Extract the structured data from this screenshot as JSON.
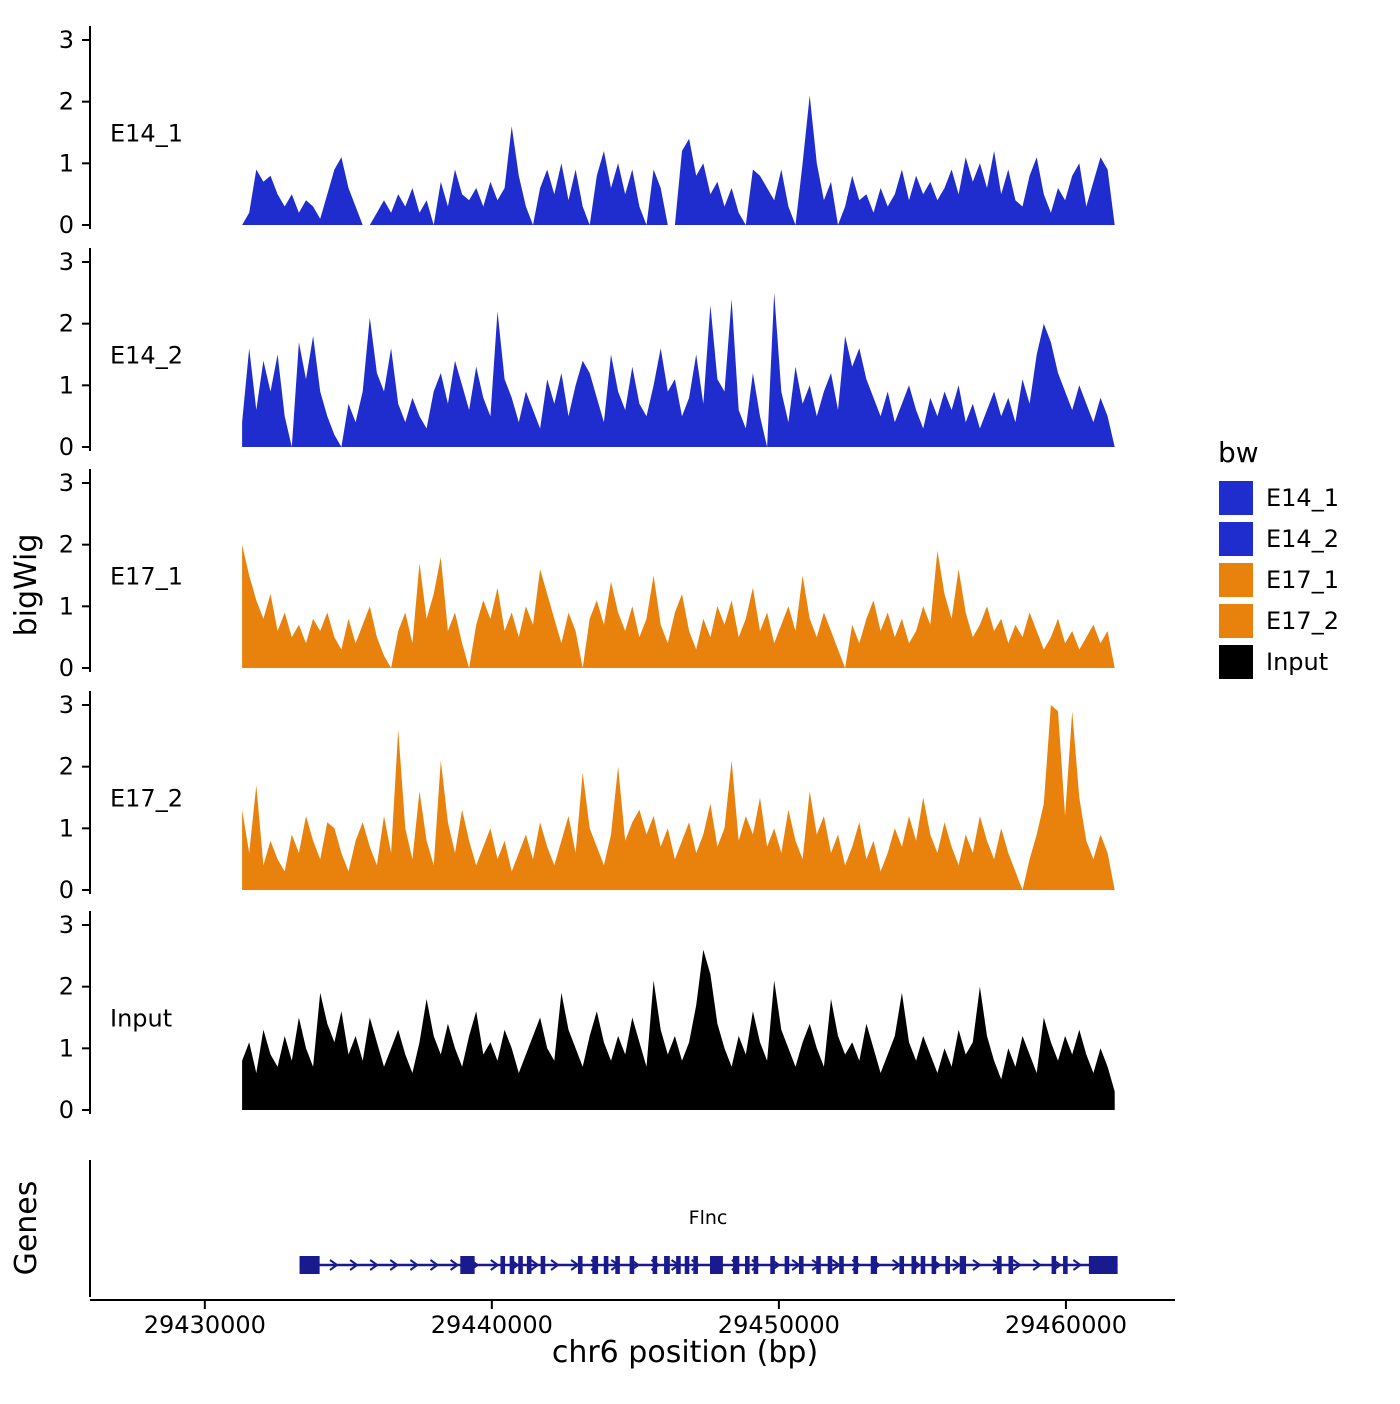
{
  "axes": {
    "y_title": "bigWig",
    "x_title": "chr6 position (bp)",
    "genes_title": "Genes",
    "y_tick_values": [
      0,
      1,
      2,
      3
    ],
    "x_ticks": [
      {
        "bp": 29430000,
        "label": "29430000"
      },
      {
        "bp": 29440000,
        "label": "29440000"
      },
      {
        "bp": 29450000,
        "label": "29450000"
      },
      {
        "bp": 29460000,
        "label": "29460000"
      }
    ]
  },
  "legend": {
    "title": "bw",
    "entries": [
      {
        "label": "E14_1",
        "color": "#1F2DCE"
      },
      {
        "label": "E14_2",
        "color": "#1F2DCE"
      },
      {
        "label": "E17_1",
        "color": "#E8820D"
      },
      {
        "label": "E17_2",
        "color": "#E8820D"
      },
      {
        "label": "Input",
        "color": "#000000"
      }
    ]
  },
  "chart_data": {
    "type": "area",
    "title": "",
    "xlabel": "chr6 position (bp)",
    "ylabel": "bigWig",
    "x_domain": [
      29426000,
      29463800
    ],
    "signal_x_start": 29431300,
    "signal_x_end": 29461700,
    "ylim": [
      0,
      3
    ],
    "tracks": [
      {
        "name": "E14_1",
        "color": "#1F2DCE",
        "values": [
          0,
          0.2,
          0.9,
          0.7,
          0.8,
          0.5,
          0.3,
          0.5,
          0.2,
          0.4,
          0.3,
          0.1,
          0.5,
          0.9,
          1.1,
          0.6,
          0.3,
          0,
          0,
          0.2,
          0.4,
          0.2,
          0.5,
          0.3,
          0.6,
          0.2,
          0.4,
          0,
          0.7,
          0.3,
          0.9,
          0.5,
          0.4,
          0.6,
          0.3,
          0.7,
          0.4,
          0.6,
          1.6,
          0.8,
          0.3,
          0,
          0.6,
          0.9,
          0.5,
          1.0,
          0.4,
          0.9,
          0.3,
          0,
          0.8,
          1.2,
          0.6,
          1.0,
          0.5,
          0.9,
          0.3,
          0,
          0.9,
          0.6,
          0,
          0,
          1.2,
          1.4,
          0.8,
          1.0,
          0.5,
          0.7,
          0.3,
          0.6,
          0.2,
          0,
          0.9,
          0.8,
          0.6,
          0.4,
          0.9,
          0.3,
          0,
          1.0,
          2.1,
          1.0,
          0.4,
          0.7,
          0,
          0.3,
          0.8,
          0.4,
          0.5,
          0.2,
          0.6,
          0.3,
          0.5,
          0.9,
          0.4,
          0.8,
          0.5,
          0.7,
          0.4,
          0.6,
          0.9,
          0.5,
          1.1,
          0.7,
          1.0,
          0.6,
          1.2,
          0.5,
          0.9,
          0.4,
          0.3,
          0.8,
          1.1,
          0.5,
          0.2,
          0.6,
          0.4,
          0.8,
          1.0,
          0.3,
          0.7,
          1.1,
          0.9,
          0
        ]
      },
      {
        "name": "E14_2",
        "color": "#1F2DCE",
        "values": [
          0.4,
          1.6,
          0.6,
          1.4,
          0.9,
          1.5,
          0.5,
          0,
          1.7,
          1.1,
          1.8,
          0.9,
          0.5,
          0.2,
          0,
          0.7,
          0.4,
          0.9,
          2.1,
          1.2,
          0.9,
          1.6,
          0.7,
          0.4,
          0.8,
          0.5,
          0.3,
          0.9,
          1.2,
          0.7,
          1.4,
          1.0,
          0.6,
          1.3,
          0.8,
          0.5,
          2.2,
          1.1,
          0.8,
          0.4,
          0.9,
          0.6,
          0.3,
          1.1,
          0.7,
          1.2,
          0.5,
          1.0,
          1.4,
          1.2,
          0.8,
          0.4,
          1.5,
          0.9,
          0.6,
          1.3,
          0.7,
          0.5,
          1.0,
          1.6,
          0.9,
          1.1,
          0.5,
          0.8,
          1.5,
          0.7,
          2.3,
          1.1,
          0.9,
          2.4,
          0.6,
          0.3,
          1.2,
          0.5,
          0,
          2.5,
          0.9,
          0.4,
          1.3,
          0.7,
          1.0,
          0.5,
          0.9,
          1.2,
          0.6,
          1.8,
          1.3,
          1.6,
          1.1,
          0.8,
          0.5,
          0.9,
          0.4,
          0.7,
          1.0,
          0.6,
          0.3,
          0.8,
          0.5,
          0.9,
          0.6,
          1.0,
          0.4,
          0.7,
          0.3,
          0.6,
          0.9,
          0.5,
          0.8,
          0.4,
          1.1,
          0.7,
          1.5,
          2.0,
          1.7,
          1.2,
          0.9,
          0.6,
          1.0,
          0.7,
          0.4,
          0.8,
          0.5,
          0
        ]
      },
      {
        "name": "E17_1",
        "color": "#E8820D",
        "values": [
          2.0,
          1.5,
          1.1,
          0.8,
          1.2,
          0.6,
          0.9,
          0.5,
          0.7,
          0.4,
          0.8,
          0.6,
          0.9,
          0.5,
          0.3,
          0.8,
          0.4,
          0.7,
          1.0,
          0.5,
          0.2,
          0,
          0.6,
          0.9,
          0.4,
          1.7,
          0.8,
          1.2,
          1.8,
          0.6,
          0.9,
          0.4,
          0,
          0.7,
          1.1,
          0.8,
          1.3,
          0.6,
          0.9,
          0.5,
          1.0,
          0.7,
          1.6,
          1.2,
          0.8,
          0.4,
          0.9,
          0.6,
          0,
          0.8,
          1.1,
          0.7,
          1.4,
          0.9,
          0.6,
          1.0,
          0.5,
          0.8,
          1.5,
          0.7,
          0.4,
          0.9,
          1.2,
          0.6,
          0.3,
          0.8,
          0.5,
          1.0,
          0.7,
          1.1,
          0.5,
          0.8,
          1.3,
          0.6,
          0.9,
          0.4,
          0.7,
          1.0,
          0.6,
          1.5,
          0.8,
          0.5,
          0.9,
          0.6,
          0.3,
          0,
          0.7,
          0.4,
          0.8,
          1.1,
          0.6,
          0.9,
          0.5,
          0.8,
          0.4,
          0.6,
          1.0,
          0.7,
          1.9,
          1.2,
          0.8,
          1.6,
          0.9,
          0.5,
          0.7,
          1.0,
          0.6,
          0.8,
          0.4,
          0.7,
          0.5,
          0.9,
          0.6,
          0.3,
          0.5,
          0.8,
          0.4,
          0.6,
          0.3,
          0.5,
          0.7,
          0.4,
          0.6,
          0
        ]
      },
      {
        "name": "E17_2",
        "color": "#E8820D",
        "values": [
          1.3,
          0.6,
          1.7,
          0.4,
          0.8,
          0.5,
          0.3,
          0.9,
          0.6,
          1.2,
          0.8,
          0.5,
          1.1,
          1.0,
          0.6,
          0.3,
          0.8,
          1.1,
          0.7,
          0.4,
          1.2,
          0.6,
          2.6,
          1.0,
          0.5,
          1.6,
          0.8,
          0.4,
          2.1,
          1.1,
          0.6,
          1.3,
          0.8,
          0.4,
          0.7,
          1.0,
          0.5,
          0.8,
          0.3,
          0.6,
          0.9,
          0.5,
          1.1,
          0.7,
          0.4,
          0.8,
          1.2,
          0.6,
          1.9,
          1.0,
          0.7,
          0.4,
          0.9,
          2.0,
          0.8,
          1.1,
          1.3,
          0.9,
          1.2,
          0.7,
          1.0,
          0.5,
          0.8,
          1.1,
          0.6,
          0.9,
          1.4,
          0.7,
          1.0,
          2.1,
          0.8,
          1.2,
          0.9,
          1.5,
          0.7,
          1.0,
          0.6,
          1.3,
          0.8,
          0.5,
          1.6,
          0.9,
          1.2,
          0.6,
          0.9,
          0.4,
          0.7,
          1.1,
          0.5,
          0.8,
          0.3,
          0.6,
          1.0,
          0.7,
          1.2,
          0.8,
          1.5,
          0.9,
          0.6,
          1.1,
          0.7,
          0.4,
          0.9,
          0.6,
          1.2,
          0.8,
          0.5,
          1.0,
          0.6,
          0.3,
          0,
          0.5,
          0.9,
          1.4,
          3.0,
          2.9,
          1.2,
          2.9,
          1.5,
          0.8,
          0.5,
          0.9,
          0.6,
          0
        ]
      },
      {
        "name": "Input",
        "color": "#000000",
        "values": [
          0.8,
          1.1,
          0.6,
          1.3,
          0.9,
          0.7,
          1.2,
          0.8,
          1.5,
          1.0,
          0.7,
          1.9,
          1.4,
          1.1,
          1.6,
          0.9,
          1.2,
          0.8,
          1.5,
          1.1,
          0.7,
          1.0,
          1.3,
          0.9,
          0.6,
          1.1,
          1.8,
          1.2,
          0.9,
          1.4,
          1.0,
          0.7,
          1.2,
          1.6,
          0.9,
          1.1,
          0.8,
          1.3,
          1.0,
          0.6,
          0.9,
          1.2,
          1.5,
          1.0,
          0.8,
          1.9,
          1.3,
          1.0,
          0.7,
          1.2,
          1.6,
          1.1,
          0.8,
          1.2,
          0.9,
          1.5,
          1.1,
          0.7,
          2.1,
          1.3,
          0.9,
          1.2,
          0.8,
          1.1,
          1.7,
          2.6,
          2.2,
          1.4,
          1.0,
          0.7,
          1.2,
          0.9,
          1.6,
          1.1,
          0.8,
          2.1,
          1.3,
          1.0,
          0.7,
          1.1,
          1.4,
          1.0,
          0.7,
          1.8,
          1.2,
          0.9,
          1.1,
          0.8,
          1.4,
          1.0,
          0.6,
          0.9,
          1.2,
          1.9,
          1.1,
          0.8,
          1.2,
          0.9,
          0.6,
          1.0,
          0.7,
          1.3,
          0.9,
          1.1,
          2.0,
          1.2,
          0.8,
          0.5,
          1.0,
          0.7,
          1.2,
          0.9,
          0.6,
          1.5,
          1.1,
          0.8,
          1.2,
          0.9,
          1.3,
          0.9,
          0.6,
          1.0,
          0.7,
          0.3
        ]
      }
    ],
    "gene": {
      "name": "Flnc",
      "color": "#1A1A8F",
      "strand": "+",
      "start": 29433300,
      "end": 29461800,
      "exons": [
        [
          29433300,
          29434000
        ],
        [
          29438900,
          29439400
        ],
        [
          29440300,
          29440460
        ],
        [
          29440620,
          29440780
        ],
        [
          29440920,
          29441080
        ],
        [
          29441220,
          29441380
        ],
        [
          29441700,
          29441860
        ],
        [
          29443000,
          29443160
        ],
        [
          29443500,
          29443700
        ],
        [
          29443900,
          29444060
        ],
        [
          29444300,
          29444460
        ],
        [
          29444800,
          29444960
        ],
        [
          29445600,
          29445760
        ],
        [
          29446000,
          29446200
        ],
        [
          29446420,
          29446580
        ],
        [
          29446720,
          29446880
        ],
        [
          29447020,
          29447180
        ],
        [
          29447600,
          29448050
        ],
        [
          29448400,
          29448620
        ],
        [
          29448820,
          29448980
        ],
        [
          29449120,
          29449280
        ],
        [
          29449700,
          29449860
        ],
        [
          29450200,
          29450360
        ],
        [
          29450700,
          29450860
        ],
        [
          29451300,
          29451460
        ],
        [
          29451700,
          29451860
        ],
        [
          29452100,
          29452260
        ],
        [
          29452600,
          29452760
        ],
        [
          29453200,
          29453420
        ],
        [
          29454200,
          29454360
        ],
        [
          29454620,
          29454780
        ],
        [
          29454940,
          29455100
        ],
        [
          29455320,
          29455480
        ],
        [
          29455800,
          29455960
        ],
        [
          29456300,
          29456520
        ],
        [
          29457600,
          29457760
        ],
        [
          29458000,
          29458160
        ],
        [
          29459500,
          29459660
        ],
        [
          29459900,
          29460060
        ],
        [
          29460800,
          29461800
        ]
      ]
    }
  }
}
